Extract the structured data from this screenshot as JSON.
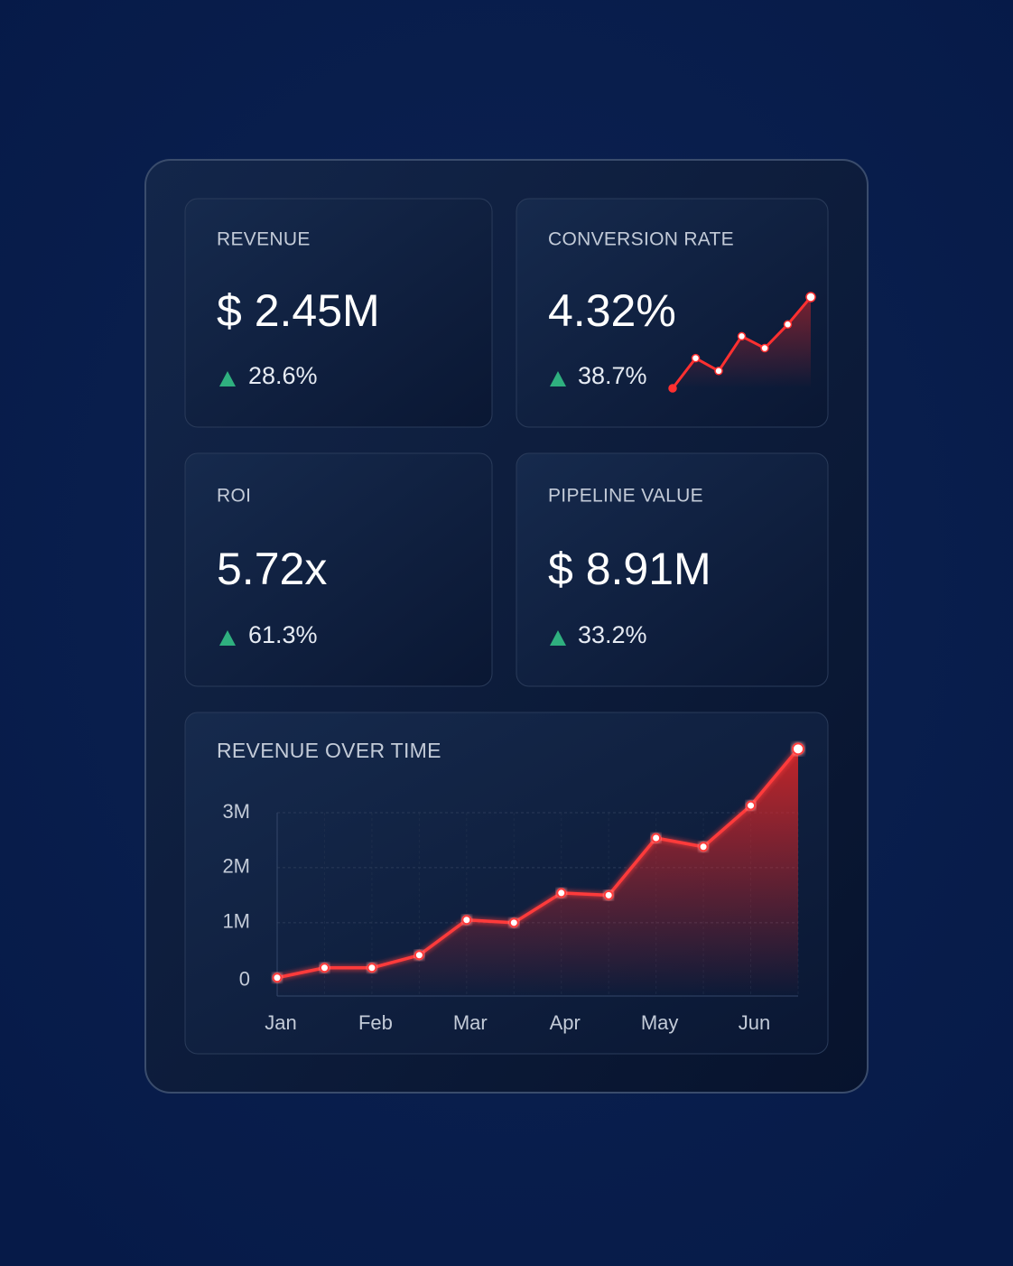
{
  "cards": [
    {
      "label": "REVENUE",
      "value": "$ 2.45M",
      "change": "28.6%"
    },
    {
      "label": "CONVERSION RATE",
      "value": "4.32%",
      "change": "38.7%",
      "sparkline": [
        0,
        3.3,
        1.9,
        5.7,
        4.4,
        7.0,
        10
      ]
    },
    {
      "label": "ROI",
      "value": "5.72x",
      "change": "61.3%"
    },
    {
      "label": "PIPELINE VALUE",
      "value": "$ 8.91M",
      "change": "33.2%"
    }
  ],
  "chart_data": {
    "type": "line",
    "title": "REVENUE OVER TIME",
    "categories": [
      "Jan",
      null,
      "Feb",
      null,
      "Mar",
      null,
      "Apr",
      null,
      "May",
      null,
      "Jun",
      null
    ],
    "series": [
      {
        "name": "Revenue",
        "color": "#ff3b3b",
        "values": [
          0,
          0.18,
          0.18,
          0.41,
          1.05,
          1.0,
          1.54,
          1.5,
          2.54,
          2.38,
          3.13,
          4.16
        ]
      }
    ],
    "ylim": [
      -0.3,
      3
    ],
    "yticks": [
      {
        "value": 0,
        "label": "0"
      },
      {
        "value": 1,
        "label": "1M"
      },
      {
        "value": 2,
        "label": "2M"
      },
      {
        "value": 3,
        "label": "3M"
      }
    ],
    "grid": true
  }
}
